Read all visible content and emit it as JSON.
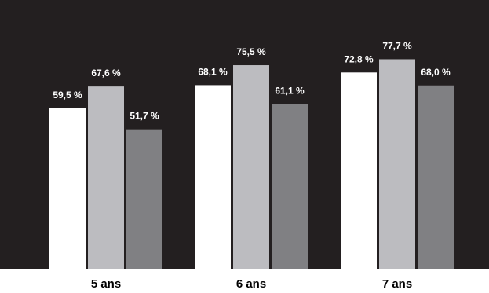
{
  "chart_data": {
    "type": "bar",
    "categories": [
      "5 ans",
      "6 ans",
      "7 ans"
    ],
    "series": [
      {
        "values": [
          59.5,
          68.1,
          72.8
        ],
        "labels": [
          "59,5 %",
          "68,1 %",
          "72,8 %"
        ],
        "color": "#ffffff"
      },
      {
        "values": [
          67.6,
          75.5,
          77.7
        ],
        "labels": [
          "67,6 %",
          "75,5 %",
          "77,7 %"
        ],
        "color": "#bcbcc0"
      },
      {
        "values": [
          51.7,
          61.1,
          68.0
        ],
        "labels": [
          "51,7 %",
          "61,1 %",
          "68,0 %"
        ],
        "color": "#808083"
      }
    ],
    "ylim": [
      0,
      100
    ],
    "grid": false,
    "legend": "none",
    "background": "#231f20",
    "label_color": "#ffffff",
    "category_label_color": "#000000"
  }
}
